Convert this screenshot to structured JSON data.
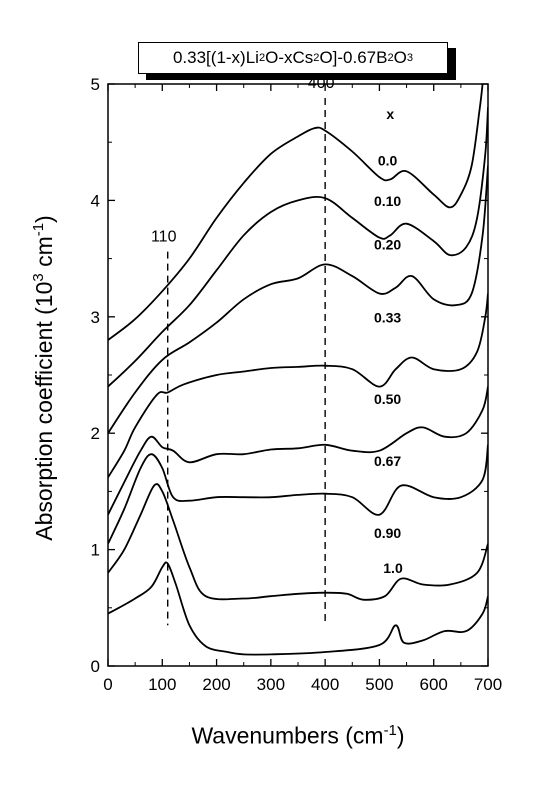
{
  "chart_data": {
    "type": "line",
    "title_parts": [
      "0.33[(1-x)Li",
      "2",
      "O-xCs",
      "2",
      "O]-0.67B",
      "2",
      "O",
      "3"
    ],
    "ylabel_parts": [
      "Absorption coefficient (10",
      "3",
      " cm",
      "-1",
      ")"
    ],
    "xlabel_parts": [
      "Wavenumbers (cm",
      "-1",
      ")"
    ],
    "xlim": [
      0,
      700
    ],
    "ylim": [
      0,
      5
    ],
    "x_ticks": [
      0,
      100,
      200,
      300,
      400,
      500,
      600,
      700
    ],
    "y_ticks": [
      0,
      1,
      2,
      3,
      4,
      5
    ],
    "grid": false,
    "legend_header": "x",
    "annotations": [
      {
        "label": "110",
        "x": 110,
        "y_top": 3.56
      },
      {
        "label": "400",
        "x": 400,
        "y_top": 4.88
      }
    ],
    "series": [
      {
        "name": "0.0",
        "label_x": 515,
        "label_y": 4.3,
        "points": [
          [
            0,
            2.8
          ],
          [
            50,
            2.98
          ],
          [
            100,
            3.22
          ],
          [
            150,
            3.5
          ],
          [
            200,
            3.85
          ],
          [
            250,
            4.15
          ],
          [
            300,
            4.4
          ],
          [
            350,
            4.55
          ],
          [
            380,
            4.62
          ],
          [
            400,
            4.6
          ],
          [
            450,
            4.42
          ],
          [
            500,
            4.2
          ],
          [
            520,
            4.18
          ],
          [
            550,
            4.25
          ],
          [
            600,
            4.05
          ],
          [
            630,
            3.94
          ],
          [
            650,
            4.05
          ],
          [
            670,
            4.3
          ],
          [
            685,
            4.8
          ],
          [
            690,
            5.0
          ]
        ]
      },
      {
        "name": "0.10",
        "label_x": 515,
        "label_y": 3.95,
        "points": [
          [
            0,
            2.4
          ],
          [
            50,
            2.62
          ],
          [
            100,
            2.87
          ],
          [
            150,
            3.1
          ],
          [
            200,
            3.4
          ],
          [
            250,
            3.7
          ],
          [
            300,
            3.9
          ],
          [
            350,
            4.0
          ],
          [
            400,
            4.02
          ],
          [
            450,
            3.85
          ],
          [
            500,
            3.68
          ],
          [
            520,
            3.7
          ],
          [
            550,
            3.8
          ],
          [
            600,
            3.65
          ],
          [
            630,
            3.53
          ],
          [
            660,
            3.6
          ],
          [
            680,
            3.85
          ],
          [
            695,
            4.4
          ],
          [
            700,
            4.8
          ]
        ]
      },
      {
        "name": "0.20",
        "label_x": 515,
        "label_y": 3.58,
        "points": [
          [
            0,
            2.0
          ],
          [
            50,
            2.35
          ],
          [
            100,
            2.63
          ],
          [
            150,
            2.78
          ],
          [
            200,
            2.95
          ],
          [
            250,
            3.15
          ],
          [
            300,
            3.28
          ],
          [
            350,
            3.33
          ],
          [
            400,
            3.45
          ],
          [
            450,
            3.35
          ],
          [
            500,
            3.2
          ],
          [
            530,
            3.25
          ],
          [
            560,
            3.35
          ],
          [
            600,
            3.15
          ],
          [
            640,
            3.1
          ],
          [
            670,
            3.2
          ],
          [
            690,
            3.7
          ],
          [
            700,
            4.3
          ]
        ]
      },
      {
        "name": "0.33",
        "label_x": 515,
        "label_y": 2.95,
        "points": [
          [
            0,
            1.62
          ],
          [
            30,
            1.85
          ],
          [
            50,
            2.05
          ],
          [
            90,
            2.33
          ],
          [
            110,
            2.35
          ],
          [
            140,
            2.42
          ],
          [
            200,
            2.5
          ],
          [
            250,
            2.53
          ],
          [
            300,
            2.56
          ],
          [
            350,
            2.57
          ],
          [
            400,
            2.58
          ],
          [
            450,
            2.55
          ],
          [
            500,
            2.4
          ],
          [
            530,
            2.55
          ],
          [
            560,
            2.65
          ],
          [
            600,
            2.55
          ],
          [
            650,
            2.55
          ],
          [
            680,
            2.7
          ],
          [
            695,
            3.0
          ],
          [
            700,
            3.2
          ]
        ]
      },
      {
        "name": "0.50",
        "label_x": 515,
        "label_y": 2.25,
        "points": [
          [
            0,
            1.3
          ],
          [
            30,
            1.58
          ],
          [
            60,
            1.85
          ],
          [
            80,
            1.97
          ],
          [
            100,
            1.88
          ],
          [
            120,
            1.85
          ],
          [
            150,
            1.75
          ],
          [
            200,
            1.82
          ],
          [
            250,
            1.82
          ],
          [
            300,
            1.86
          ],
          [
            350,
            1.87
          ],
          [
            400,
            1.9
          ],
          [
            450,
            1.85
          ],
          [
            500,
            1.85
          ],
          [
            550,
            2.0
          ],
          [
            580,
            2.05
          ],
          [
            620,
            1.97
          ],
          [
            660,
            2.0
          ],
          [
            690,
            2.2
          ],
          [
            700,
            2.4
          ]
        ]
      },
      {
        "name": "0.67",
        "label_x": 515,
        "label_y": 1.72,
        "points": [
          [
            0,
            1.05
          ],
          [
            30,
            1.35
          ],
          [
            60,
            1.7
          ],
          [
            80,
            1.82
          ],
          [
            100,
            1.7
          ],
          [
            120,
            1.45
          ],
          [
            150,
            1.42
          ],
          [
            200,
            1.45
          ],
          [
            250,
            1.45
          ],
          [
            300,
            1.45
          ],
          [
            350,
            1.47
          ],
          [
            400,
            1.48
          ],
          [
            450,
            1.45
          ],
          [
            500,
            1.3
          ],
          [
            540,
            1.55
          ],
          [
            600,
            1.45
          ],
          [
            650,
            1.45
          ],
          [
            690,
            1.6
          ],
          [
            700,
            1.9
          ]
        ]
      },
      {
        "name": "0.90",
        "label_x": 515,
        "label_y": 1.1,
        "points": [
          [
            0,
            0.8
          ],
          [
            30,
            1.0
          ],
          [
            60,
            1.3
          ],
          [
            85,
            1.55
          ],
          [
            100,
            1.5
          ],
          [
            120,
            1.25
          ],
          [
            150,
            0.85
          ],
          [
            180,
            0.6
          ],
          [
            250,
            0.58
          ],
          [
            300,
            0.6
          ],
          [
            350,
            0.62
          ],
          [
            400,
            0.63
          ],
          [
            440,
            0.62
          ],
          [
            470,
            0.57
          ],
          [
            510,
            0.6
          ],
          [
            540,
            0.75
          ],
          [
            580,
            0.7
          ],
          [
            630,
            0.7
          ],
          [
            680,
            0.8
          ],
          [
            700,
            1.05
          ]
        ]
      },
      {
        "name": "1.0",
        "label_x": 525,
        "label_y": 0.8,
        "points": [
          [
            0,
            0.45
          ],
          [
            20,
            0.5
          ],
          [
            50,
            0.58
          ],
          [
            80,
            0.68
          ],
          [
            100,
            0.85
          ],
          [
            110,
            0.88
          ],
          [
            125,
            0.7
          ],
          [
            150,
            0.35
          ],
          [
            180,
            0.17
          ],
          [
            220,
            0.12
          ],
          [
            250,
            0.1
          ],
          [
            300,
            0.1
          ],
          [
            400,
            0.12
          ],
          [
            500,
            0.18
          ],
          [
            530,
            0.35
          ],
          [
            545,
            0.2
          ],
          [
            580,
            0.22
          ],
          [
            620,
            0.3
          ],
          [
            660,
            0.3
          ],
          [
            690,
            0.45
          ],
          [
            700,
            0.6
          ]
        ]
      }
    ]
  }
}
